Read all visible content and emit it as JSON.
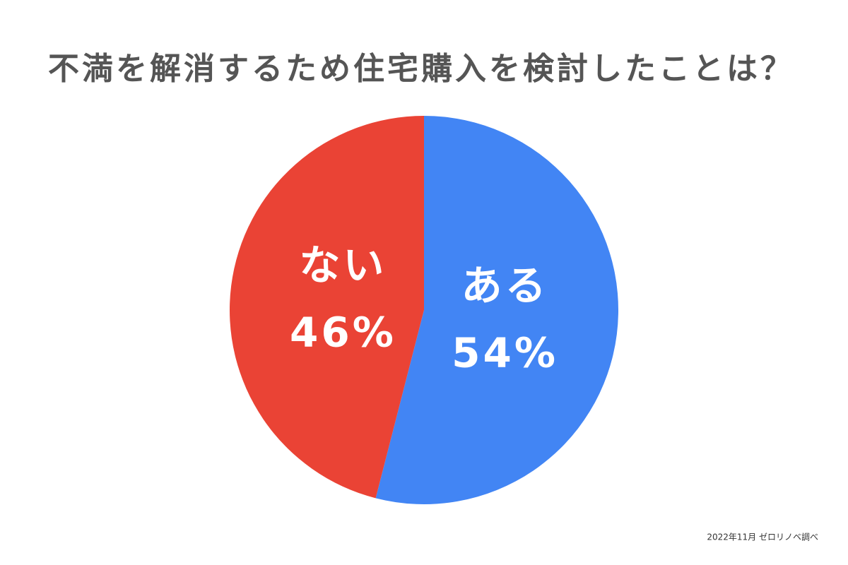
{
  "chart_data": {
    "type": "pie",
    "title": "不満を解消するため住宅購入を検討したことは？",
    "categories": [
      "ある",
      "ない"
    ],
    "values": [
      54,
      46
    ],
    "value_labels": [
      "54%",
      "46%"
    ],
    "colors": [
      "#4285f4",
      "#ea4335"
    ],
    "source": "2022年11月 ゼロリノベ調べ"
  }
}
